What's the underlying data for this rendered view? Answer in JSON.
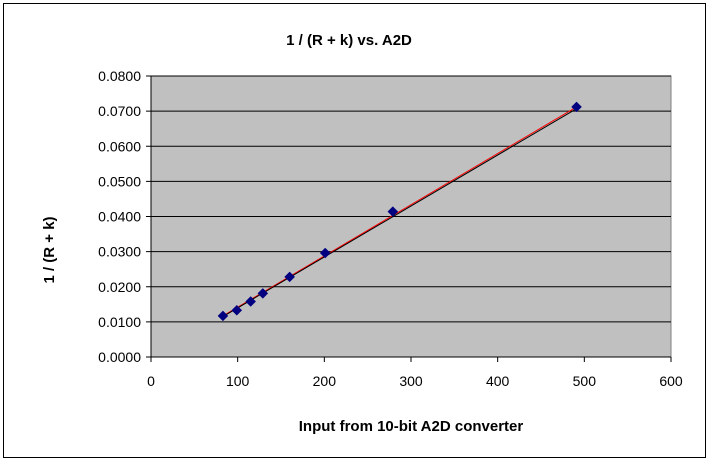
{
  "chart_data": {
    "type": "scatter",
    "title": "1 / (R + k) vs. A2D",
    "xlabel": "Input from 10-bit A2D converter",
    "ylabel": "1 / (R + k)",
    "xlim": [
      0,
      600
    ],
    "ylim": [
      0,
      0.08
    ],
    "x_ticks": [
      "0",
      "100",
      "200",
      "300",
      "400",
      "500",
      "600"
    ],
    "y_ticks": [
      "0.0000",
      "0.0100",
      "0.0200",
      "0.0300",
      "0.0400",
      "0.0500",
      "0.0600",
      "0.0700",
      "0.0800"
    ],
    "grid": "horizontal",
    "legend": "none",
    "series": [
      {
        "marker": "diamond",
        "points": [
          {
            "x": 83,
            "y": 0.0117
          },
          {
            "x": 99,
            "y": 0.0133
          },
          {
            "x": 115,
            "y": 0.0158
          },
          {
            "x": 129,
            "y": 0.0181
          },
          {
            "x": 160,
            "y": 0.0228
          },
          {
            "x": 201,
            "y": 0.0296
          },
          {
            "x": 279,
            "y": 0.0414
          },
          {
            "x": 491,
            "y": 0.0712
          }
        ]
      }
    ],
    "fit_lines": [
      {
        "color": "#ff0000",
        "from": {
          "x": 83,
          "y": 0.0117
        },
        "to": {
          "x": 491,
          "y": 0.0712
        }
      },
      {
        "color": "#000000",
        "from": {
          "x": 83,
          "y": 0.0115
        },
        "to": {
          "x": 491,
          "y": 0.0707
        }
      }
    ],
    "colors": {
      "plot_background": "#c0c0c0",
      "gridline": "#000000",
      "marker": "#000080"
    }
  }
}
